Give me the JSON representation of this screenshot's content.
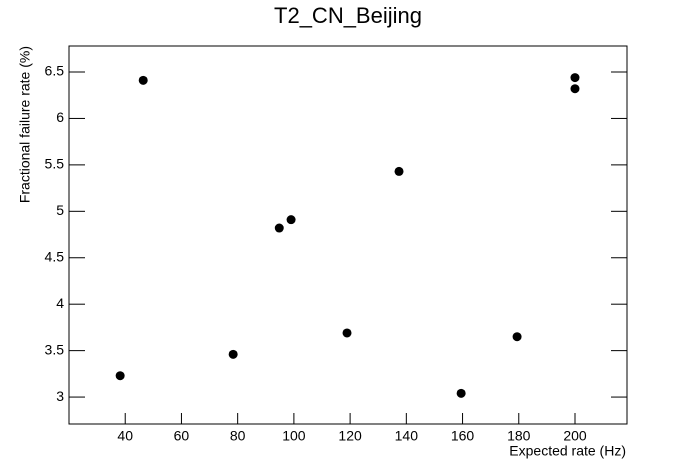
{
  "chart_data": {
    "type": "scatter",
    "title": "T2_CN_Beijing",
    "x_label": "Expected rate (Hz)",
    "y_label": "Fractional failure rate (%)",
    "x": [
      38.2,
      46.4,
      78.4,
      94.8,
      99.0,
      118.9,
      137.4,
      159.5,
      179.4,
      200,
      200
    ],
    "values": [
      3.23,
      6.41,
      3.46,
      4.82,
      4.91,
      3.69,
      5.43,
      3.04,
      3.65,
      6.44,
      6.32
    ],
    "color": "#000000",
    "xlim": [
      20,
      218.5
    ],
    "ylim": [
      2.71,
      6.78
    ],
    "xticks": [
      40,
      60,
      80,
      100,
      120,
      140,
      160,
      180,
      200
    ],
    "yticks": [
      3,
      3.5,
      4,
      4.5,
      5,
      5.5,
      6,
      6.5
    ]
  }
}
